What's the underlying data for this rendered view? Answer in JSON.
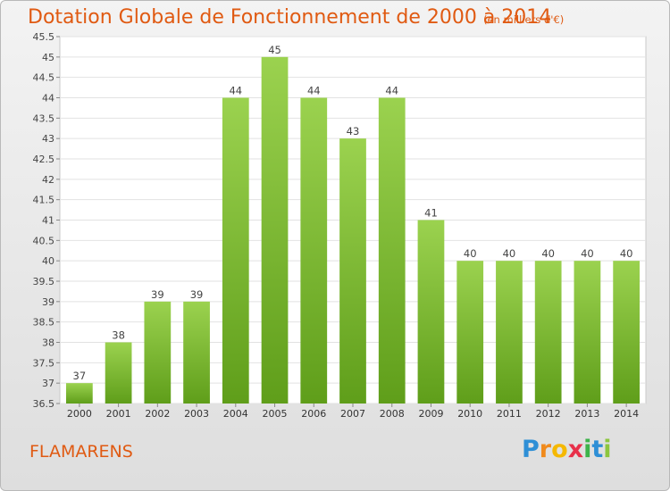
{
  "chart_data": {
    "type": "bar",
    "title": "Dotation Globale de Fonctionnement de 2000 à 2014",
    "subtitle": "(en milliers d'€)",
    "categories": [
      "2000",
      "2001",
      "2002",
      "2003",
      "2004",
      "2005",
      "2006",
      "2007",
      "2008",
      "2009",
      "2010",
      "2011",
      "2012",
      "2013",
      "2014"
    ],
    "values": [
      37,
      38,
      39,
      39,
      44,
      45,
      44,
      43,
      44,
      41,
      40,
      40,
      40,
      40,
      40
    ],
    "ylim": [
      36.5,
      45.5
    ],
    "yticks": [
      "36.5",
      "37",
      "37.5",
      "38",
      "38.5",
      "39",
      "39.5",
      "40",
      "40.5",
      "41",
      "41.5",
      "42",
      "42.5",
      "43",
      "43.5",
      "44",
      "44.5",
      "45",
      "45.5"
    ],
    "grid": true,
    "bar_color_top": "#9bd24f",
    "bar_color_bottom": "#5f9e1a"
  },
  "footer": {
    "commune": "FLAMARENS",
    "brand_letters": [
      "P",
      "r",
      "o",
      "x",
      "i",
      "t",
      "i"
    ],
    "brand_colors": [
      "#2e8fd6",
      "#f08a1c",
      "#f5b800",
      "#e8304a",
      "#3db34a",
      "#2e8fd6",
      "#8dc63f"
    ]
  }
}
